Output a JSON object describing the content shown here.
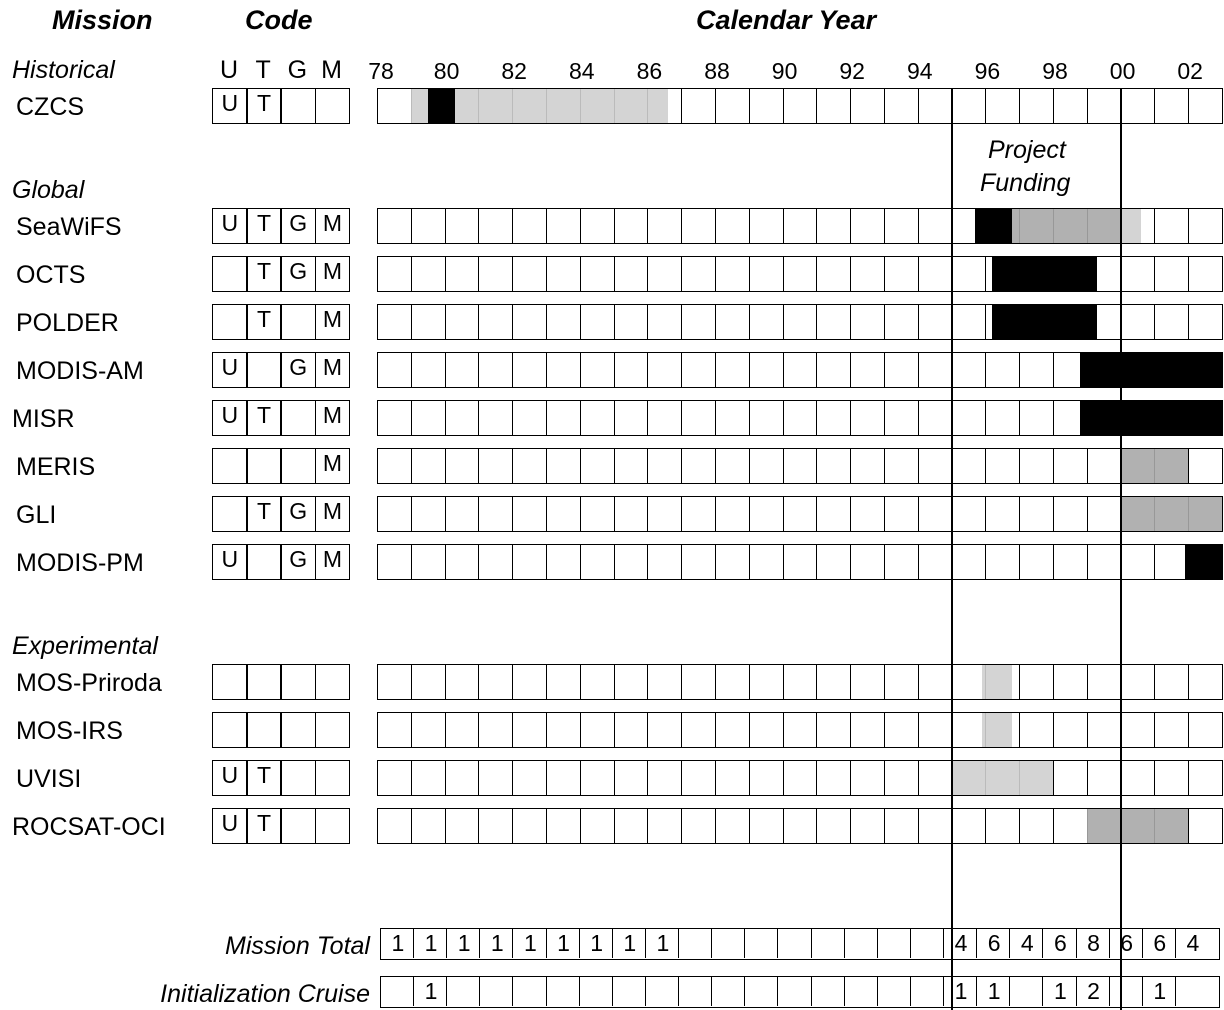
{
  "headers": {
    "mission": "Mission",
    "code": "Code",
    "calendar_year": "Calendar Year"
  },
  "code_letters": [
    "U",
    "T",
    "G",
    "M"
  ],
  "year_ticks": [
    "78",
    "80",
    "82",
    "84",
    "86",
    "88",
    "90",
    "92",
    "94",
    "96",
    "98",
    "00",
    "02"
  ],
  "groups": {
    "historical": "Historical",
    "global": "Global",
    "experimental": "Experimental"
  },
  "annotation": {
    "line1": "Project",
    "line2": "Funding"
  },
  "missions": [
    {
      "name": "CZCS",
      "codes": [
        "U",
        "T",
        "",
        ""
      ],
      "bars": [
        {
          "from": 1979.0,
          "to": 1979.5,
          "shade": "light"
        },
        {
          "from": 1979.5,
          "to": 1980.3,
          "shade": "dark"
        },
        {
          "from": 1980.3,
          "to": 1986.6,
          "shade": "light"
        }
      ]
    },
    {
      "name": "SeaWiFS",
      "codes": [
        "U",
        "T",
        "G",
        "M"
      ],
      "bars": [
        {
          "from": 1995.7,
          "to": 1996.8,
          "shade": "dark"
        },
        {
          "from": 1996.8,
          "to": 2000.0,
          "shade": "medium"
        },
        {
          "from": 2000.0,
          "to": 2000.6,
          "shade": "light"
        }
      ]
    },
    {
      "name": "OCTS",
      "codes": [
        "",
        "T",
        "G",
        "M"
      ],
      "bars": [
        {
          "from": 1996.2,
          "to": 1999.3,
          "shade": "dark"
        }
      ]
    },
    {
      "name": "POLDER",
      "codes": [
        "",
        "T",
        "",
        "M"
      ],
      "bars": [
        {
          "from": 1996.2,
          "to": 1999.3,
          "shade": "dark"
        }
      ]
    },
    {
      "name": "MODIS-AM",
      "codes": [
        "U",
        "",
        "G",
        "M"
      ],
      "bars": [
        {
          "from": 1998.8,
          "to": 2003.0,
          "shade": "dark"
        }
      ]
    },
    {
      "name": "MISR",
      "codes": [
        "U",
        "T",
        "",
        "M"
      ],
      "bars": [
        {
          "from": 1998.8,
          "to": 2003.0,
          "shade": "dark"
        }
      ]
    },
    {
      "name": "MERIS",
      "codes": [
        "",
        "",
        "",
        "M"
      ],
      "bars": [
        {
          "from": 2000.0,
          "to": 2002.0,
          "shade": "medium"
        }
      ]
    },
    {
      "name": "GLI",
      "codes": [
        "",
        "T",
        "G",
        "M"
      ],
      "bars": [
        {
          "from": 2000.0,
          "to": 2003.0,
          "shade": "medium"
        }
      ]
    },
    {
      "name": "MODIS-PM",
      "codes": [
        "U",
        "",
        "G",
        "M"
      ],
      "bars": [
        {
          "from": 2001.9,
          "to": 2003.0,
          "shade": "dark"
        }
      ]
    },
    {
      "name": "MOS-Priroda",
      "codes": [
        "",
        "",
        "",
        ""
      ],
      "bars": [
        {
          "from": 1995.9,
          "to": 1996.8,
          "shade": "light"
        }
      ]
    },
    {
      "name": "MOS-IRS",
      "codes": [
        "",
        "",
        "",
        ""
      ],
      "bars": [
        {
          "from": 1995.9,
          "to": 1996.8,
          "shade": "light"
        }
      ]
    },
    {
      "name": "UVISI",
      "codes": [
        "U",
        "T",
        "",
        ""
      ],
      "bars": [
        {
          "from": 1995.0,
          "to": 1998.0,
          "shade": "light"
        }
      ]
    },
    {
      "name": "ROCSAT-OCI",
      "codes": [
        "U",
        "T",
        "",
        ""
      ],
      "bars": [
        {
          "from": 1999.0,
          "to": 2002.0,
          "shade": "medium"
        }
      ]
    }
  ],
  "totals": {
    "mission_total_label": "Mission Total",
    "mission_total": [
      "1",
      "1",
      "1",
      "1",
      "1",
      "1",
      "1",
      "1",
      "1",
      "",
      "",
      "",
      "",
      "",
      "",
      "",
      "",
      "4",
      "6",
      "4",
      "6",
      "8",
      "6",
      "6",
      "4"
    ],
    "init_cruise_label": "Initialization Cruise",
    "init_cruise": [
      "",
      "1",
      "",
      "",
      "",
      "",
      "",
      "",
      "",
      "",
      "",
      "",
      "",
      "",
      "",
      "",
      "",
      "1",
      "1",
      "",
      "1",
      "2",
      "",
      "1",
      ""
    ]
  },
  "funding_window": {
    "from": 1995,
    "to": 2000
  },
  "year_range": [
    1978,
    2003
  ],
  "colors": {
    "dark": "#000000",
    "medium": "#a9a9a9",
    "light": "#cfcfcf"
  }
}
